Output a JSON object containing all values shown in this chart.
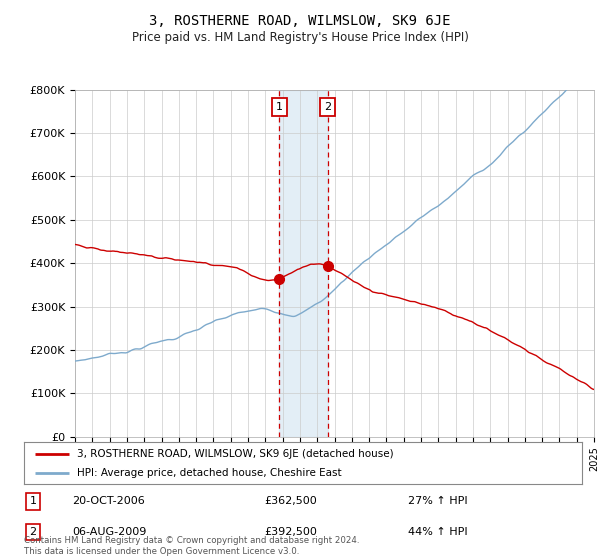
{
  "title": "3, ROSTHERNE ROAD, WILMSLOW, SK9 6JE",
  "subtitle": "Price paid vs. HM Land Registry's House Price Index (HPI)",
  "ylim": [
    0,
    800000
  ],
  "yticks": [
    0,
    100000,
    200000,
    300000,
    400000,
    500000,
    600000,
    700000,
    800000
  ],
  "ytick_labels": [
    "£0",
    "£100K",
    "£200K",
    "£300K",
    "£400K",
    "£500K",
    "£600K",
    "£700K",
    "£800K"
  ],
  "xlim_start": 1995,
  "xlim_end": 2025,
  "line1_color": "#cc0000",
  "line2_color": "#7eaacc",
  "purchase1_date": 2006.8,
  "purchase1_price": 362500,
  "purchase1_label": "1",
  "purchase2_date": 2009.6,
  "purchase2_price": 392500,
  "purchase2_label": "2",
  "legend_line1": "3, ROSTHERNE ROAD, WILMSLOW, SK9 6JE (detached house)",
  "legend_line2": "HPI: Average price, detached house, Cheshire East",
  "table_row1": [
    "1",
    "20-OCT-2006",
    "£362,500",
    "27% ↑ HPI"
  ],
  "table_row2": [
    "2",
    "06-AUG-2009",
    "£392,500",
    "44% ↑ HPI"
  ],
  "footnote": "Contains HM Land Registry data © Crown copyright and database right 2024.\nThis data is licensed under the Open Government Licence v3.0.",
  "bg_color": "#ffffff",
  "grid_color": "#cccccc",
  "shade_color": "#cce0f0"
}
